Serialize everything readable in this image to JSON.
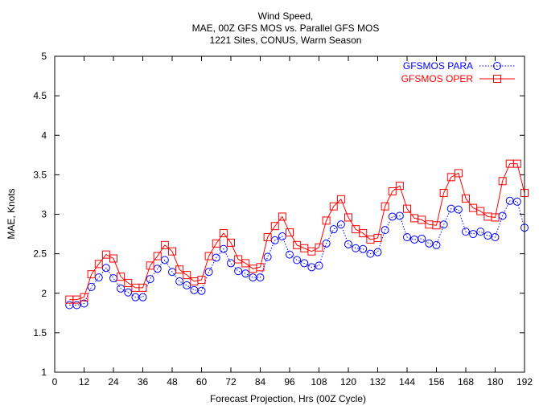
{
  "chart_data": {
    "type": "line",
    "title_lines": [
      "Wind Speed,",
      "MAE, 00Z GFS MOS vs. Parallel GFS MOS",
      "1221 Sites, CONUS, Warm Season"
    ],
    "xlabel": "Forecast Projection, Hrs (00Z Cycle)",
    "ylabel": "MAE, Knots",
    "xlim": [
      0,
      192
    ],
    "ylim": [
      1,
      5
    ],
    "xticks": [
      0,
      12,
      24,
      36,
      48,
      60,
      72,
      84,
      96,
      108,
      120,
      132,
      144,
      156,
      168,
      180,
      192
    ],
    "yticks": [
      1,
      1.5,
      2,
      2.5,
      3,
      3.5,
      4,
      4.5,
      5
    ],
    "ytick_labels": [
      "1",
      "1.5",
      "2",
      "2.5",
      "3",
      "3.5",
      "4",
      "4.5",
      "5"
    ],
    "legend_position": "top-right",
    "x": [
      6,
      9,
      12,
      15,
      18,
      21,
      24,
      27,
      30,
      33,
      36,
      39,
      42,
      45,
      48,
      51,
      54,
      57,
      60,
      63,
      66,
      69,
      72,
      75,
      78,
      81,
      84,
      87,
      90,
      93,
      96,
      99,
      102,
      105,
      108,
      111,
      114,
      117,
      120,
      123,
      126,
      129,
      132,
      135,
      138,
      141,
      144,
      147,
      150,
      153,
      156,
      159,
      162,
      165,
      168,
      171,
      174,
      177,
      180,
      183,
      186,
      189,
      192
    ],
    "series": [
      {
        "name": "GFSMOS PARA",
        "color": "#0000ff",
        "marker": "circle",
        "line": "dotted",
        "values": [
          1.85,
          1.85,
          1.87,
          2.08,
          2.2,
          2.32,
          2.19,
          2.06,
          2.01,
          1.95,
          1.95,
          2.18,
          2.31,
          2.42,
          2.27,
          2.15,
          2.1,
          2.04,
          2.03,
          2.27,
          2.45,
          2.56,
          2.38,
          2.28,
          2.25,
          2.2,
          2.2,
          2.46,
          2.67,
          2.72,
          2.49,
          2.42,
          2.38,
          2.33,
          2.35,
          2.63,
          2.81,
          2.87,
          2.62,
          2.57,
          2.56,
          2.5,
          2.52,
          2.8,
          2.97,
          2.98,
          2.71,
          2.68,
          2.69,
          2.63,
          2.61,
          2.87,
          3.07,
          3.06,
          2.78,
          2.75,
          2.78,
          2.73,
          2.71,
          2.98,
          3.17,
          3.16,
          2.83
        ]
      },
      {
        "name": "GFSMOS OPER",
        "color": "#ff0000",
        "marker": "square",
        "line": "solid",
        "values": [
          1.92,
          1.92,
          1.95,
          2.24,
          2.37,
          2.49,
          2.44,
          2.21,
          2.13,
          2.07,
          2.07,
          2.35,
          2.47,
          2.61,
          2.53,
          2.3,
          2.23,
          2.15,
          2.17,
          2.47,
          2.63,
          2.76,
          2.64,
          2.43,
          2.38,
          2.31,
          2.33,
          2.71,
          2.85,
          2.97,
          2.77,
          2.61,
          2.57,
          2.53,
          2.58,
          2.92,
          3.1,
          3.19,
          2.96,
          2.81,
          2.76,
          2.68,
          2.7,
          3.1,
          3.29,
          3.36,
          3.07,
          2.95,
          2.93,
          2.87,
          2.86,
          3.27,
          3.47,
          3.52,
          3.2,
          3.08,
          3.04,
          2.97,
          2.96,
          3.42,
          3.64,
          3.64,
          3.27
        ]
      }
    ]
  }
}
